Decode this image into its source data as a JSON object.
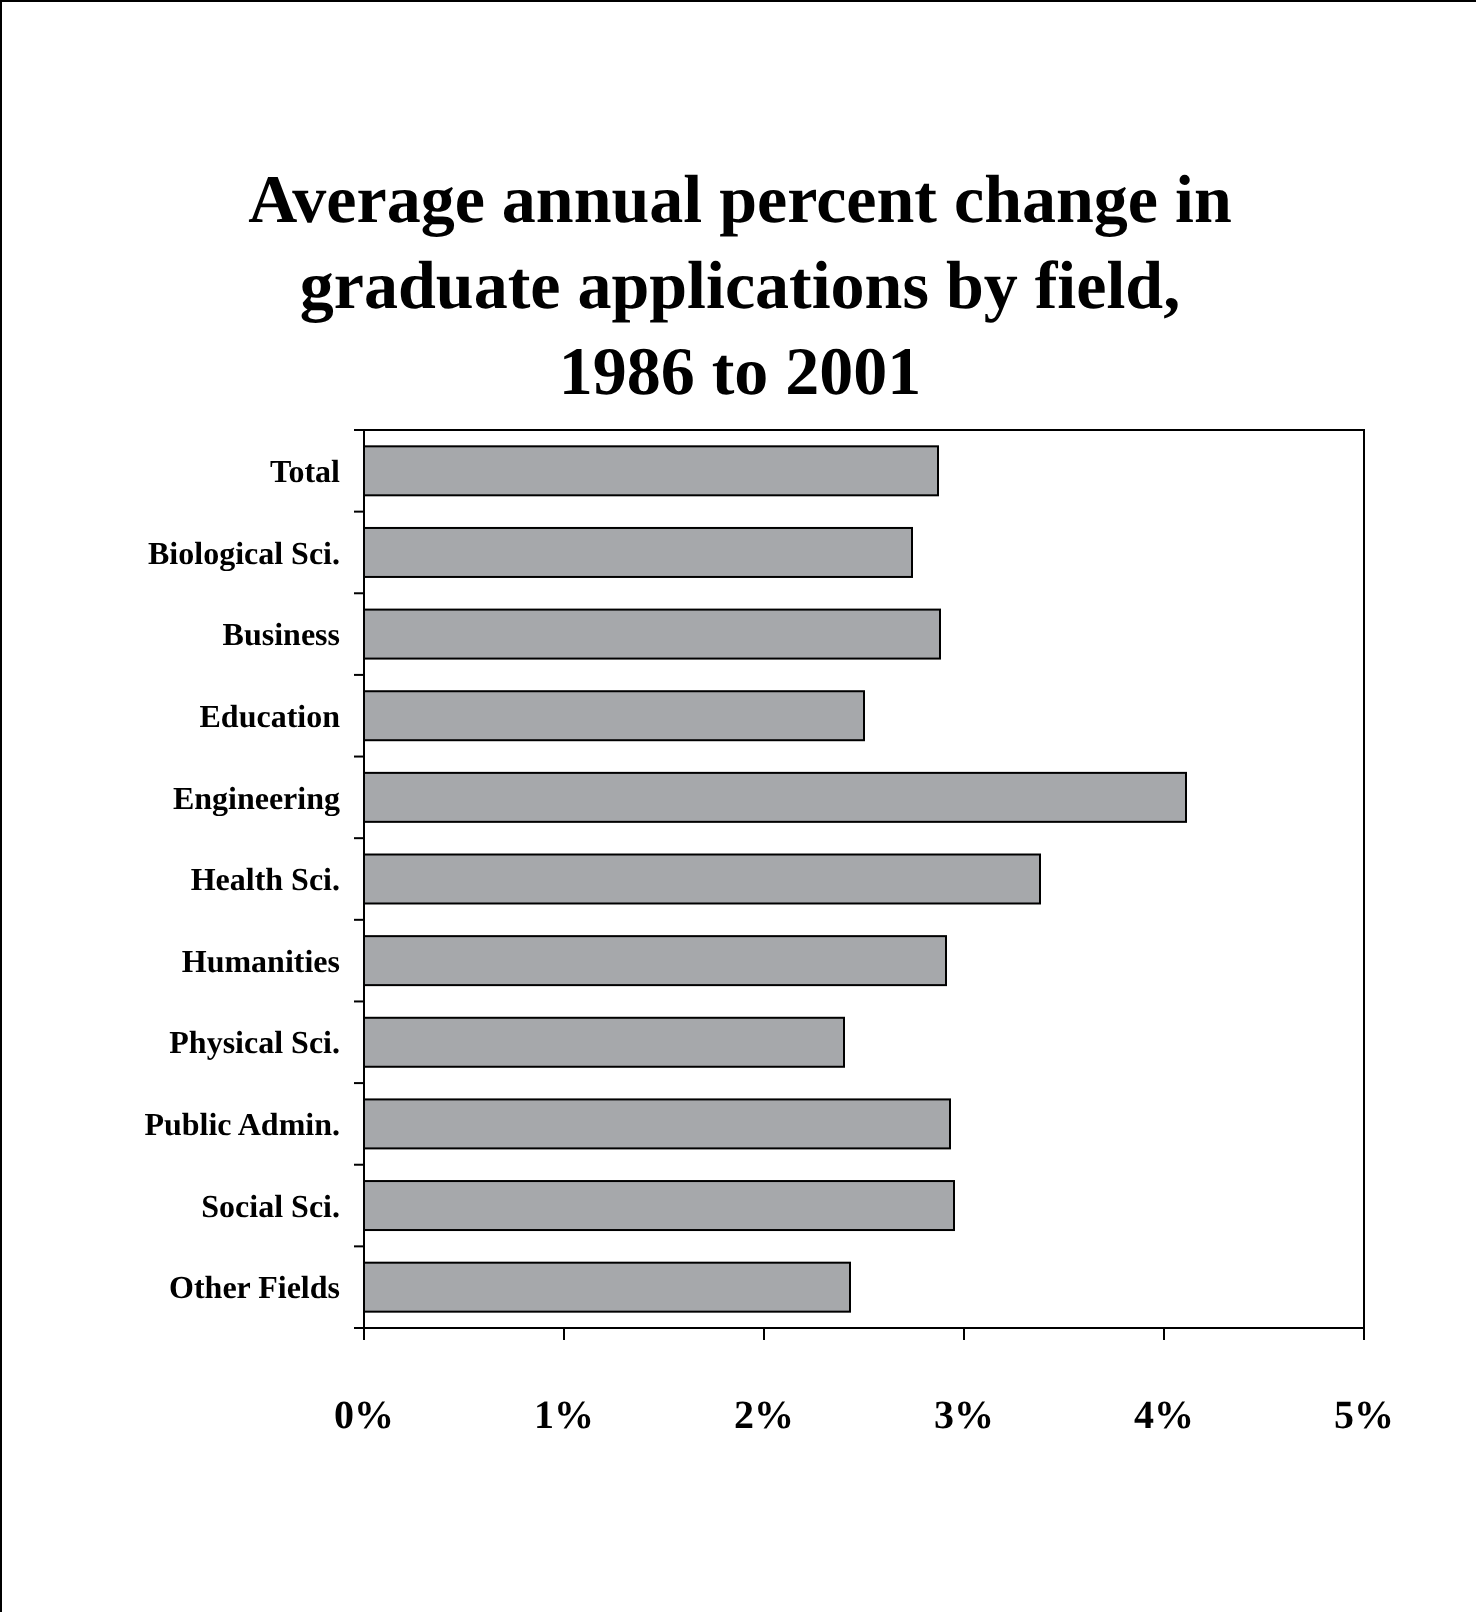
{
  "chart_data": {
    "type": "bar",
    "orientation": "horizontal",
    "title": "Average annual percent change in graduate applications by field, 1986 to 2001",
    "categories": [
      "Total",
      "Biological Sci.",
      "Business",
      "Education",
      "Engineering",
      "Health Sci.",
      "Humanities",
      "Physical Sci.",
      "Public Admin.",
      "Social Sci.",
      "Other Fields"
    ],
    "values": [
      2.87,
      2.74,
      2.88,
      2.5,
      4.11,
      3.38,
      2.91,
      2.4,
      2.93,
      2.95,
      2.43
    ],
    "color": "#a6a8ab",
    "xlim": [
      0,
      5
    ],
    "xticks": [
      {
        "value": 0,
        "label": "0%"
      },
      {
        "value": 1,
        "label": "1%"
      },
      {
        "value": 2,
        "label": "2%"
      },
      {
        "value": 3,
        "label": "3%"
      },
      {
        "value": 4,
        "label": "4%"
      },
      {
        "value": 5,
        "label": "5%"
      }
    ],
    "grid": false
  }
}
